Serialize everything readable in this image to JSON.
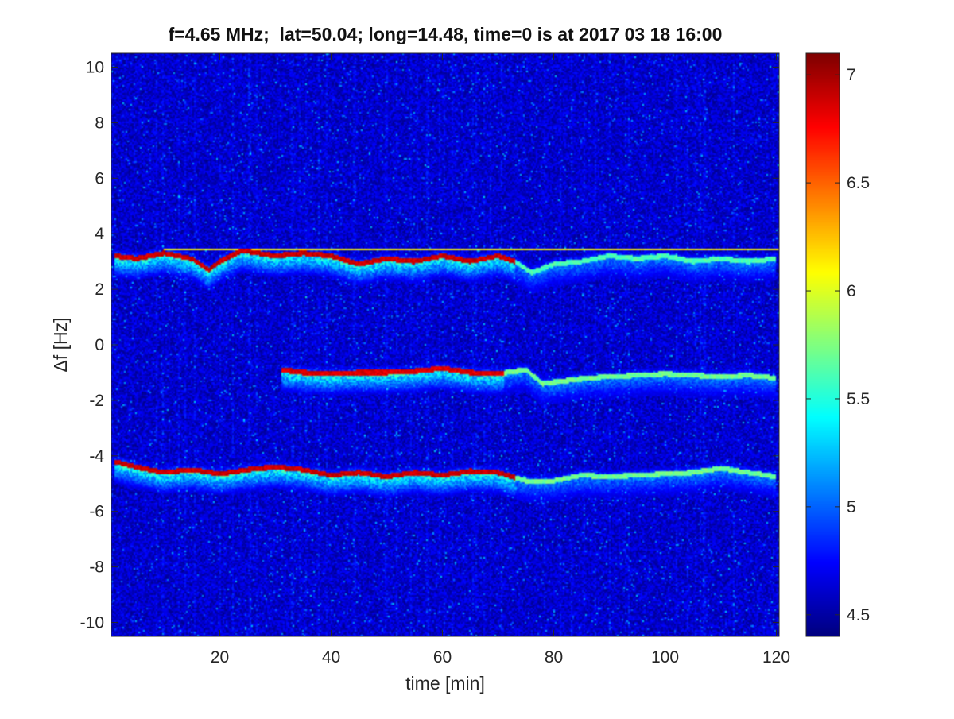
{
  "chart_data": {
    "type": "heatmap",
    "title": "f=4.65 MHz;  lat=50.04; long=14.48, time=0 is at 2017 03 18 16:00",
    "xlabel": "time [min]",
    "ylabel": "Δf [Hz]",
    "xlim": [
      0.5,
      120.5
    ],
    "ylim": [
      -10.5,
      10.5
    ],
    "x_ticks": [
      20,
      40,
      60,
      80,
      100,
      120
    ],
    "x_tick_labels": [
      "20",
      "40",
      "60",
      "80",
      "100",
      "120"
    ],
    "y_ticks": [
      10,
      8,
      6,
      4,
      2,
      0,
      -2,
      -4,
      -6,
      -8,
      -10
    ],
    "y_tick_labels": [
      "10",
      "8",
      "6",
      "4",
      "2",
      "0",
      "-2",
      "-4",
      "-6",
      "-8",
      "-10"
    ],
    "colormap": "jet",
    "color_range": [
      4.4,
      7.1
    ],
    "colorbar_ticks": [
      7,
      6.5,
      6,
      5.5,
      5,
      4.5
    ],
    "colorbar_tick_labels": [
      "7",
      "6.5",
      "6",
      "5.5",
      "5",
      "4.5"
    ],
    "background_level": 4.6,
    "traces": [
      {
        "points": [
          [
            1,
            3.2
          ],
          [
            5,
            3.1
          ],
          [
            10,
            3.3
          ],
          [
            15,
            3.1
          ],
          [
            18,
            2.7
          ],
          [
            20,
            3.0
          ],
          [
            24,
            3.4
          ],
          [
            30,
            3.2
          ],
          [
            35,
            3.3
          ],
          [
            40,
            3.2
          ],
          [
            45,
            2.9
          ],
          [
            50,
            3.1
          ],
          [
            55,
            3.0
          ],
          [
            60,
            3.2
          ],
          [
            65,
            3.0
          ],
          [
            70,
            3.2
          ],
          [
            73,
            3.0
          ],
          [
            76,
            2.6
          ],
          [
            80,
            2.9
          ],
          [
            85,
            3.0
          ],
          [
            90,
            3.2
          ],
          [
            95,
            3.1
          ],
          [
            100,
            3.2
          ],
          [
            105,
            3.0
          ],
          [
            110,
            3.1
          ],
          [
            115,
            3.0
          ],
          [
            120,
            3.1
          ]
        ],
        "peak_until": 73,
        "peak": 7.0,
        "tail": 5.7
      },
      {
        "points": [
          [
            31,
            -0.9
          ],
          [
            35,
            -1.0
          ],
          [
            40,
            -1.05
          ],
          [
            45,
            -1.0
          ],
          [
            50,
            -1.0
          ],
          [
            55,
            -0.95
          ],
          [
            60,
            -0.85
          ],
          [
            65,
            -1.0
          ],
          [
            70,
            -1.05
          ],
          [
            75,
            -0.9
          ],
          [
            78,
            -1.4
          ],
          [
            82,
            -1.3
          ],
          [
            86,
            -1.2
          ],
          [
            90,
            -1.15
          ],
          [
            95,
            -1.1
          ],
          [
            100,
            -1.05
          ],
          [
            105,
            -1.1
          ],
          [
            110,
            -1.15
          ],
          [
            115,
            -1.1
          ],
          [
            120,
            -1.2
          ]
        ],
        "peak_until": 71,
        "peak": 6.95,
        "tail": 5.8
      },
      {
        "points": [
          [
            1,
            -4.2
          ],
          [
            5,
            -4.4
          ],
          [
            10,
            -4.6
          ],
          [
            15,
            -4.5
          ],
          [
            20,
            -4.65
          ],
          [
            25,
            -4.5
          ],
          [
            30,
            -4.4
          ],
          [
            35,
            -4.5
          ],
          [
            40,
            -4.7
          ],
          [
            45,
            -4.6
          ],
          [
            50,
            -4.75
          ],
          [
            55,
            -4.6
          ],
          [
            60,
            -4.7
          ],
          [
            65,
            -4.55
          ],
          [
            70,
            -4.6
          ],
          [
            75,
            -4.9
          ],
          [
            80,
            -4.9
          ],
          [
            85,
            -4.7
          ],
          [
            90,
            -4.75
          ],
          [
            95,
            -4.7
          ],
          [
            100,
            -4.65
          ],
          [
            105,
            -4.6
          ],
          [
            110,
            -4.45
          ],
          [
            115,
            -4.6
          ],
          [
            120,
            -4.75
          ]
        ],
        "peak_until": 73,
        "peak": 7.0,
        "tail": 5.8
      }
    ],
    "horizontal_line": {
      "y": 3.45,
      "x_start": 10,
      "level": 6.0
    }
  }
}
